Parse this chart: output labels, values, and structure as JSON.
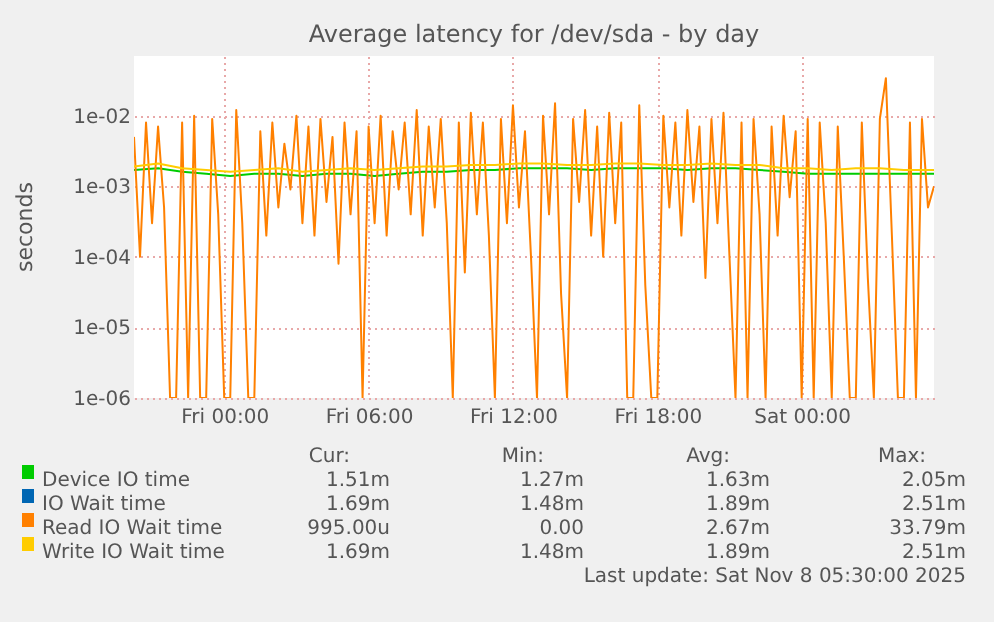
{
  "chart_data": {
    "type": "line",
    "title": "Average latency for /dev/sda - by day",
    "ylabel": "seconds",
    "log": true,
    "grid": true,
    "legend": "bottom",
    "line_style": "solid",
    "xlim": [
      "2025-11-06T20:15",
      "2025-11-08T05:30"
    ],
    "xticks": [
      {
        "value": "2025-11-07T00:00",
        "label": "Fri 00:00"
      },
      {
        "value": "2025-11-07T06:00",
        "label": "Fri 06:00"
      },
      {
        "value": "2025-11-07T12:00",
        "label": "Fri 12:00"
      },
      {
        "value": "2025-11-07T18:00",
        "label": "Fri 18:00"
      },
      {
        "value": "2025-11-08T00:00",
        "label": "Sat 00:00"
      }
    ],
    "ylim": [
      1e-06,
      0.07
    ],
    "yticks": [
      {
        "value": 1e-06,
        "label": "1e-06"
      },
      {
        "value": 1e-05,
        "label": "1e-05"
      },
      {
        "value": 0.0001,
        "label": "1e-04"
      },
      {
        "value": 0.001,
        "label": "1e-03"
      },
      {
        "value": 0.01,
        "label": "1e-02"
      }
    ],
    "x": [
      "2025-11-06T20:15",
      "2025-11-06T21:15",
      "2025-11-06T22:15",
      "2025-11-06T23:15",
      "2025-11-07T00:15",
      "2025-11-07T01:15",
      "2025-11-07T02:15",
      "2025-11-07T03:15",
      "2025-11-07T04:15",
      "2025-11-07T05:15",
      "2025-11-07T06:15",
      "2025-11-07T07:15",
      "2025-11-07T08:15",
      "2025-11-07T09:15",
      "2025-11-07T10:15",
      "2025-11-07T11:15",
      "2025-11-07T12:15",
      "2025-11-07T13:15",
      "2025-11-07T14:15",
      "2025-11-07T15:15",
      "2025-11-07T16:15",
      "2025-11-07T17:15",
      "2025-11-07T18:15",
      "2025-11-07T19:15",
      "2025-11-07T20:15",
      "2025-11-07T21:15",
      "2025-11-07T22:15",
      "2025-11-07T23:15",
      "2025-11-08T00:15",
      "2025-11-08T01:15",
      "2025-11-08T02:15",
      "2025-11-08T03:15",
      "2025-11-08T04:15",
      "2025-11-08T05:15",
      "2025-11-08T05:30"
    ],
    "series": [
      {
        "name": "Device IO time",
        "color": "#00cc00",
        "values": [
          0.0017,
          0.0018,
          0.0016,
          0.0015,
          0.0014,
          0.0015,
          0.0015,
          0.0014,
          0.0015,
          0.0015,
          0.0014,
          0.0015,
          0.0016,
          0.0016,
          0.0017,
          0.0017,
          0.0018,
          0.0018,
          0.0018,
          0.0017,
          0.0018,
          0.0018,
          0.0018,
          0.0017,
          0.0018,
          0.0018,
          0.0017,
          0.0016,
          0.0015,
          0.0015,
          0.0015,
          0.0015,
          0.0015,
          0.0015,
          0.0015
        ]
      },
      {
        "name": "IO Wait time",
        "color": "#0066b3",
        "values": [
          null,
          null,
          null,
          null,
          null,
          null,
          null,
          null,
          null,
          null,
          null,
          null,
          null,
          null,
          null,
          null,
          null,
          null,
          null,
          null,
          null,
          null,
          null,
          null,
          null,
          null,
          null,
          null,
          null,
          null,
          null,
          null,
          null,
          null,
          null
        ]
      },
      {
        "name": "Read IO Wait time",
        "color": "#ff8000",
        "x": [
          "2025-11-06T20:15",
          "2025-11-06T20:30",
          "2025-11-06T20:45",
          "2025-11-06T21:00",
          "2025-11-06T21:15",
          "2025-11-06T21:30",
          "2025-11-06T21:45",
          "2025-11-06T22:00",
          "2025-11-06T22:15",
          "2025-11-06T22:30",
          "2025-11-06T22:45",
          "2025-11-06T23:00",
          "2025-11-06T23:15",
          "2025-11-06T23:30",
          "2025-11-06T23:45",
          "2025-11-07T00:00",
          "2025-11-07T00:15",
          "2025-11-07T00:30",
          "2025-11-07T00:45",
          "2025-11-07T01:00",
          "2025-11-07T01:15",
          "2025-11-07T01:30",
          "2025-11-07T01:45",
          "2025-11-07T02:00",
          "2025-11-07T02:15",
          "2025-11-07T02:30",
          "2025-11-07T02:45",
          "2025-11-07T03:00",
          "2025-11-07T03:15",
          "2025-11-07T03:30",
          "2025-11-07T03:45",
          "2025-11-07T04:00",
          "2025-11-07T04:15",
          "2025-11-07T04:30",
          "2025-11-07T04:45",
          "2025-11-07T05:00",
          "2025-11-07T05:15",
          "2025-11-07T05:30",
          "2025-11-07T05:45",
          "2025-11-07T06:00",
          "2025-11-07T06:15",
          "2025-11-07T06:30",
          "2025-11-07T06:45",
          "2025-11-07T07:00",
          "2025-11-07T07:15",
          "2025-11-07T07:30",
          "2025-11-07T07:45",
          "2025-11-07T08:00",
          "2025-11-07T08:15",
          "2025-11-07T08:30",
          "2025-11-07T08:45",
          "2025-11-07T09:00",
          "2025-11-07T09:15",
          "2025-11-07T09:30",
          "2025-11-07T09:45",
          "2025-11-07T10:00",
          "2025-11-07T10:15",
          "2025-11-07T10:30",
          "2025-11-07T10:45",
          "2025-11-07T11:00",
          "2025-11-07T11:15",
          "2025-11-07T11:30",
          "2025-11-07T11:45",
          "2025-11-07T12:00",
          "2025-11-07T12:15",
          "2025-11-07T12:30",
          "2025-11-07T12:45",
          "2025-11-07T13:00",
          "2025-11-07T13:15",
          "2025-11-07T13:30",
          "2025-11-07T13:45",
          "2025-11-07T14:00",
          "2025-11-07T14:15",
          "2025-11-07T14:30",
          "2025-11-07T14:45",
          "2025-11-07T15:00",
          "2025-11-07T15:15",
          "2025-11-07T15:30",
          "2025-11-07T15:45",
          "2025-11-07T16:00",
          "2025-11-07T16:15",
          "2025-11-07T16:30",
          "2025-11-07T16:45",
          "2025-11-07T17:00",
          "2025-11-07T17:15",
          "2025-11-07T17:30",
          "2025-11-07T17:45",
          "2025-11-07T18:00",
          "2025-11-07T18:15",
          "2025-11-07T18:30",
          "2025-11-07T18:45",
          "2025-11-07T19:00",
          "2025-11-07T19:15",
          "2025-11-07T19:30",
          "2025-11-07T19:45",
          "2025-11-07T20:00",
          "2025-11-07T20:15",
          "2025-11-07T20:30",
          "2025-11-07T20:45",
          "2025-11-07T21:00",
          "2025-11-07T21:15",
          "2025-11-07T21:30",
          "2025-11-07T21:45",
          "2025-11-07T22:00",
          "2025-11-07T22:15",
          "2025-11-07T22:30",
          "2025-11-07T22:45",
          "2025-11-07T23:00",
          "2025-11-07T23:15",
          "2025-11-07T23:30",
          "2025-11-07T23:45",
          "2025-11-08T00:00",
          "2025-11-08T00:15",
          "2025-11-08T00:30",
          "2025-11-08T00:45",
          "2025-11-08T01:00",
          "2025-11-08T01:15",
          "2025-11-08T01:30",
          "2025-11-08T01:45",
          "2025-11-08T02:00",
          "2025-11-08T02:15",
          "2025-11-08T02:30",
          "2025-11-08T02:45",
          "2025-11-08T03:00",
          "2025-11-08T03:15",
          "2025-11-08T03:30",
          "2025-11-08T03:45",
          "2025-11-08T04:00",
          "2025-11-08T04:15",
          "2025-11-08T04:30",
          "2025-11-08T04:45",
          "2025-11-08T05:00",
          "2025-11-08T05:15",
          "2025-11-08T05:30"
        ],
        "values": [
          0.005,
          0.0001,
          0.008,
          0.0003,
          0.007,
          0.0005,
          1e-06,
          1e-06,
          0.008,
          1e-06,
          0.01,
          1e-06,
          1e-06,
          0.009,
          0.0004,
          1e-06,
          1e-06,
          0.012,
          0.0003,
          1e-06,
          1e-06,
          0.006,
          0.0002,
          0.008,
          0.0005,
          0.004,
          0.0009,
          0.01,
          0.0003,
          0.007,
          0.0002,
          0.009,
          0.0006,
          0.005,
          8e-05,
          0.008,
          0.0004,
          0.006,
          1e-06,
          0.007,
          0.0003,
          0.01,
          0.0002,
          0.006,
          0.0009,
          0.008,
          0.0004,
          0.012,
          0.0002,
          0.007,
          0.0005,
          0.009,
          0.0003,
          1e-06,
          0.008,
          6e-05,
          0.011,
          0.0004,
          0.008,
          0.0002,
          1e-06,
          0.009,
          0.0003,
          0.014,
          0.0005,
          0.006,
          0.0001,
          1e-06,
          0.01,
          0.0004,
          0.015,
          3e-05,
          1e-06,
          0.009,
          0.0006,
          0.012,
          0.0002,
          0.007,
          0.0001,
          0.011,
          0.0003,
          0.008,
          1e-06,
          1e-06,
          0.014,
          4e-05,
          1e-06,
          1e-06,
          0.01,
          0.0005,
          0.008,
          0.0002,
          0.012,
          0.0006,
          0.007,
          5e-05,
          0.009,
          0.0003,
          0.011,
          0.0001,
          1e-06,
          0.008,
          1e-06,
          0.009,
          0.0004,
          1e-06,
          0.007,
          0.0002,
          0.01,
          0.0007,
          0.006,
          1e-06,
          0.009,
          1e-06,
          0.008,
          0.0003,
          1e-06,
          0.007,
          0.0001,
          1e-06,
          1e-06,
          0.008,
          5e-05,
          1e-06,
          0.009,
          0.034,
          0.0002,
          1e-06,
          1e-06,
          0.008,
          1e-06,
          0.009,
          0.0005,
          0.001
        ]
      },
      {
        "name": "Write IO Wait time",
        "color": "#ffcc00",
        "values": [
          0.0019,
          0.0021,
          0.0018,
          0.0017,
          0.0016,
          0.0017,
          0.0018,
          0.0016,
          0.0017,
          0.0018,
          0.0017,
          0.0018,
          0.0019,
          0.0019,
          0.002,
          0.002,
          0.0021,
          0.0021,
          0.002,
          0.002,
          0.0021,
          0.0021,
          0.002,
          0.002,
          0.0021,
          0.002,
          0.002,
          0.0018,
          0.0018,
          0.0017,
          0.0018,
          0.0018,
          0.0017,
          0.0017,
          0.0017
        ]
      }
    ],
    "annotations": [
      "Cur:",
      "Min:",
      "Avg:",
      "Max:",
      "1.51m",
      "1.27m",
      "1.63m",
      "2.05m",
      "1.69m",
      "1.48m",
      "1.89m",
      "2.51m",
      "995.00u",
      "0.00",
      "2.67m",
      "33.79m",
      "1.69m",
      "1.48m",
      "1.89m",
      "2.51m",
      "Last update: Sat Nov  8 05:30:00 2025"
    ]
  }
}
